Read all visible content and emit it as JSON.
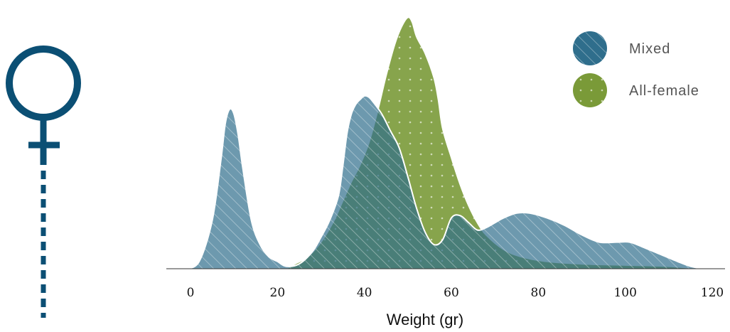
{
  "chart_data": {
    "type": "area",
    "xlabel": "Weight (gr)",
    "ylabel": "",
    "xlim": [
      -3,
      123
    ],
    "ylim": [
      0,
      1
    ],
    "x_ticks": [
      0,
      20,
      40,
      60,
      80,
      100,
      120
    ],
    "legend_position": "top-right",
    "grid": false,
    "series": [
      {
        "name": "Mixed",
        "color": "#2f6e8c",
        "fill_opacity": 0.7,
        "pattern": "diagonal-hatch",
        "points": [
          [
            -1,
            0.0
          ],
          [
            2,
            0.03
          ],
          [
            5,
            0.2
          ],
          [
            7,
            0.45
          ],
          [
            8,
            0.6
          ],
          [
            9,
            0.66
          ],
          [
            10,
            0.64
          ],
          [
            11,
            0.55
          ],
          [
            12,
            0.42
          ],
          [
            14,
            0.2
          ],
          [
            16,
            0.1
          ],
          [
            18,
            0.05
          ],
          [
            20,
            0.03
          ],
          [
            22,
            0.01
          ],
          [
            25,
            0.02
          ],
          [
            28,
            0.07
          ],
          [
            30,
            0.13
          ],
          [
            32,
            0.2
          ],
          [
            34,
            0.3
          ],
          [
            35,
            0.42
          ],
          [
            36,
            0.56
          ],
          [
            37,
            0.64
          ],
          [
            38,
            0.68
          ],
          [
            39,
            0.7
          ],
          [
            40,
            0.715
          ],
          [
            41,
            0.71
          ],
          [
            42,
            0.69
          ],
          [
            44,
            0.64
          ],
          [
            46,
            0.57
          ],
          [
            48,
            0.5
          ],
          [
            50,
            0.38
          ],
          [
            52,
            0.25
          ],
          [
            54,
            0.15
          ],
          [
            56,
            0.1
          ],
          [
            58,
            0.12
          ],
          [
            60,
            0.21
          ],
          [
            62,
            0.22
          ],
          [
            64,
            0.19
          ],
          [
            66,
            0.16
          ],
          [
            68,
            0.17
          ],
          [
            70,
            0.19
          ],
          [
            72,
            0.21
          ],
          [
            75,
            0.23
          ],
          [
            78,
            0.23
          ],
          [
            82,
            0.21
          ],
          [
            86,
            0.18
          ],
          [
            90,
            0.14
          ],
          [
            94,
            0.11
          ],
          [
            98,
            0.11
          ],
          [
            101,
            0.11
          ],
          [
            104,
            0.09
          ],
          [
            108,
            0.06
          ],
          [
            112,
            0.03
          ],
          [
            115,
            0.01
          ],
          [
            118,
            0.0
          ]
        ]
      },
      {
        "name": "All-female",
        "color": "#7a9a38",
        "fill_opacity": 0.9,
        "pattern": "dots",
        "points": [
          [
            22,
            0.0
          ],
          [
            24,
            0.02
          ],
          [
            27,
            0.05
          ],
          [
            30,
            0.11
          ],
          [
            33,
            0.2
          ],
          [
            35,
            0.28
          ],
          [
            37,
            0.36
          ],
          [
            39,
            0.43
          ],
          [
            41,
            0.52
          ],
          [
            43,
            0.65
          ],
          [
            45,
            0.8
          ],
          [
            47,
            0.93
          ],
          [
            48.5,
            1.0
          ],
          [
            50,
            1.04
          ],
          [
            51,
            1.02
          ],
          [
            52,
            0.96
          ],
          [
            54,
            0.89
          ],
          [
            56,
            0.79
          ],
          [
            57,
            0.7
          ],
          [
            58,
            0.58
          ],
          [
            60,
            0.46
          ],
          [
            62,
            0.35
          ],
          [
            64,
            0.26
          ],
          [
            66,
            0.19
          ],
          [
            68,
            0.14
          ],
          [
            72,
            0.08
          ],
          [
            76,
            0.05
          ],
          [
            82,
            0.03
          ],
          [
            90,
            0.02
          ],
          [
            100,
            0.015
          ],
          [
            110,
            0.01
          ],
          [
            117,
            0.0
          ]
        ]
      }
    ]
  },
  "female_symbol": {
    "icon": "female-symbol-icon",
    "color": "#0b4f74"
  }
}
